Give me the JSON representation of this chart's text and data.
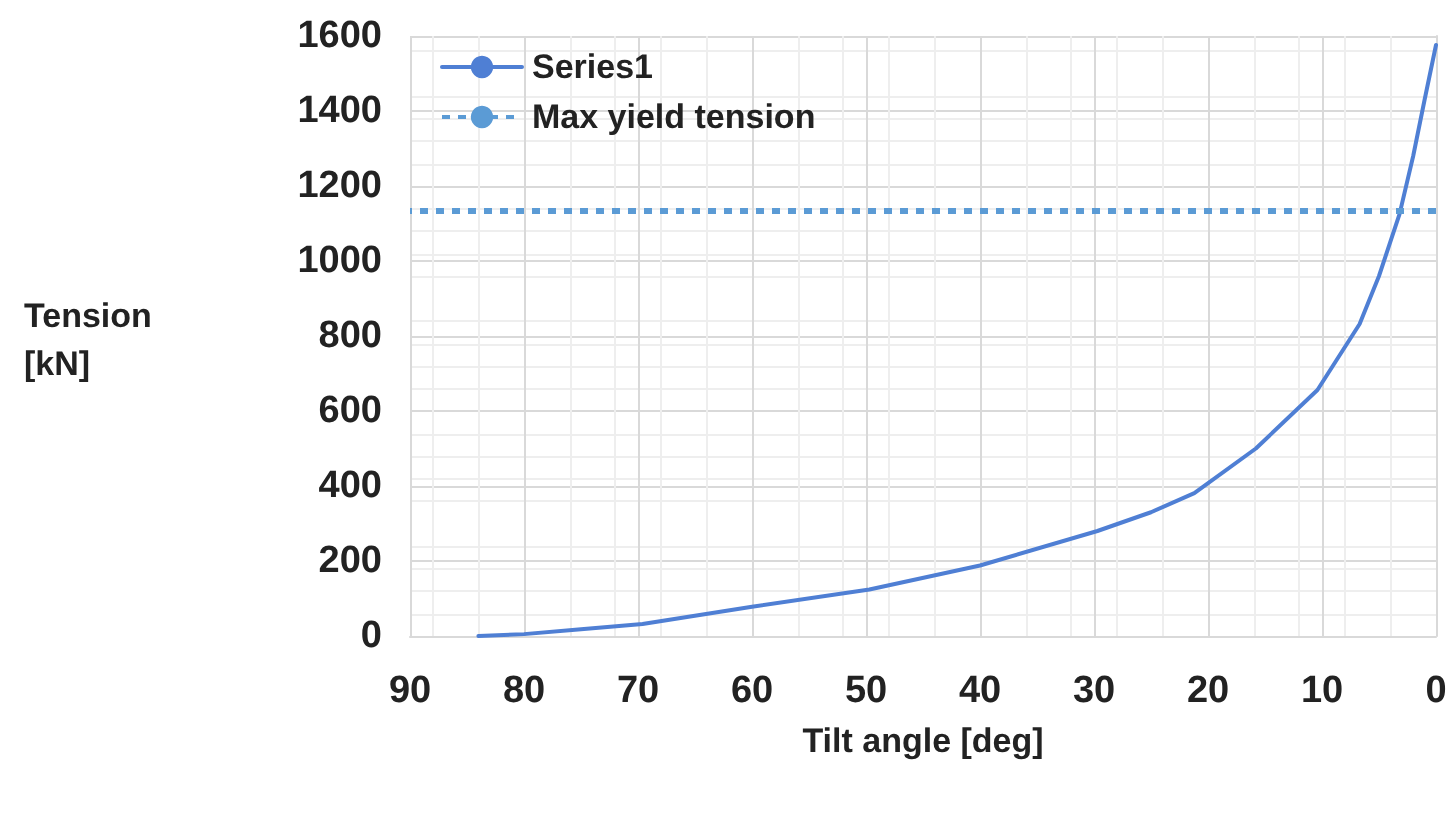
{
  "chart_data": {
    "type": "line",
    "xlabel": "Tilt angle [deg]",
    "ylabel": "Tension\n[kN]",
    "xlim": [
      90,
      0
    ],
    "xticks": [
      90,
      80,
      70,
      60,
      50,
      40,
      30,
      20,
      10,
      0
    ],
    "ylim": [
      0,
      1600
    ],
    "yticks": [
      0,
      200,
      400,
      600,
      800,
      1000,
      1200,
      1400,
      1600
    ],
    "series": [
      {
        "name": "Series1",
        "color": "#4f7fd4",
        "x": [
          84,
          80,
          75,
          69.6,
          60,
          49.7,
          40,
          29.7,
          25,
          21.2,
          15.8,
          10.4,
          6.7,
          5,
          3.2,
          2,
          1,
          0
        ],
        "values": [
          0,
          5,
          18,
          32,
          78,
          124,
          188,
          280,
          330,
          381,
          500,
          656,
          832,
          960,
          1125,
          1280,
          1430,
          1576
        ]
      }
    ],
    "ref_lines": [
      {
        "axis": "y",
        "value": 1135,
        "label": "Max yield tension",
        "color": "#5b9bd5",
        "line_style": "dotted"
      }
    ],
    "grid": true,
    "legend": "top left",
    "marker": "none",
    "line_style": "solid"
  }
}
